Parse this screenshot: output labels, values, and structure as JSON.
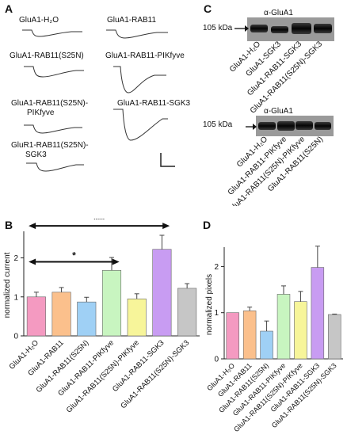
{
  "panels": {
    "A": "A",
    "B": "B",
    "C": "C",
    "D": "D"
  },
  "traces": [
    {
      "line1": "GluA1-H₂O",
      "line2": ""
    },
    {
      "line1": "GluA1-RAB11",
      "line2": ""
    },
    {
      "line1": "GluA1-RAB11(S25N)",
      "line2": ""
    },
    {
      "line1": "GluA1-RAB11-PIKfyve",
      "line2": ""
    },
    {
      "line1": "GluA1-RAB11(S25N)-",
      "line2": "PIKfyve"
    },
    {
      "line1": "GluA1-RAB11-SGK3",
      "line2": ""
    },
    {
      "line1": "GluR1-RAB11(S25N)-",
      "line2": "SGK3"
    }
  ],
  "blots": [
    {
      "title": "α-GluA1",
      "mw": "105 kDa",
      "lanes": [
        "GluA1-H₂O",
        "GluA1-SGK3",
        "GluA1-RAB11-SGK3",
        "GluA1-RAB11(S25N)-SGK3"
      ]
    },
    {
      "title": "α-GluA1",
      "mw": "105 kDa",
      "lanes": [
        "GluA1-H₂O",
        "GluA1-RAB11-PIKfyve",
        "GluA1-RAB11(S25N)-PIKfyve",
        "GluA1-RAB11(S25N)"
      ]
    }
  ],
  "chart_data": [
    {
      "type": "bar",
      "ylabel": "normalized current",
      "ylim": [
        0,
        2.6
      ],
      "yticks": [
        "0",
        "1",
        "2"
      ],
      "categories": [
        "GluA1-H₂O",
        "GluA1-RAB11",
        "GluA1-RAB11(S25N)",
        "GluA1-RAB11-PIKfyve",
        "GluA1-RAB11(S25N)-PIKfyve",
        "GluA1-RAB11-SGK3",
        "GluA1-RAB11(S25N)-SGK3"
      ],
      "values": [
        1.0,
        1.12,
        0.87,
        1.68,
        0.95,
        2.22,
        1.22
      ],
      "errors": [
        0.12,
        0.12,
        0.12,
        0.33,
        0.13,
        0.36,
        0.12
      ],
      "colors": [
        "#f49ac1",
        "#fbc08c",
        "#9fd0f5",
        "#c8f5c0",
        "#f7f59a",
        "#c89cf2",
        "#c6c6c6"
      ],
      "significance": [
        {
          "label": "*",
          "from": 0,
          "to": 3
        },
        {
          "label": "***",
          "from": 0,
          "to": 5
        }
      ]
    },
    {
      "type": "bar",
      "ylabel": "normalized pixels",
      "ylim": [
        0,
        2.35
      ],
      "yticks": [
        "0",
        "1",
        "2"
      ],
      "categories": [
        "GluA1-H₂O",
        "GluA1-RAB11",
        "GluA1-RAB11(S25N)",
        "GluA1-RAB11-PIKfyve",
        "GluA1-RAB11(S25N)-PIKfyve",
        "GluA1-RAB11-SGK3",
        "GluA1-RAB11(S25N)-SGK3"
      ],
      "values": [
        1.0,
        1.04,
        0.6,
        1.4,
        1.24,
        1.98,
        0.96
      ],
      "errors": [
        0.0,
        0.08,
        0.22,
        0.18,
        0.22,
        0.46,
        0.01
      ],
      "colors": [
        "#f49ac1",
        "#fbc08c",
        "#9fd0f5",
        "#c8f5c0",
        "#f7f59a",
        "#c89cf2",
        "#c6c6c6"
      ]
    }
  ]
}
